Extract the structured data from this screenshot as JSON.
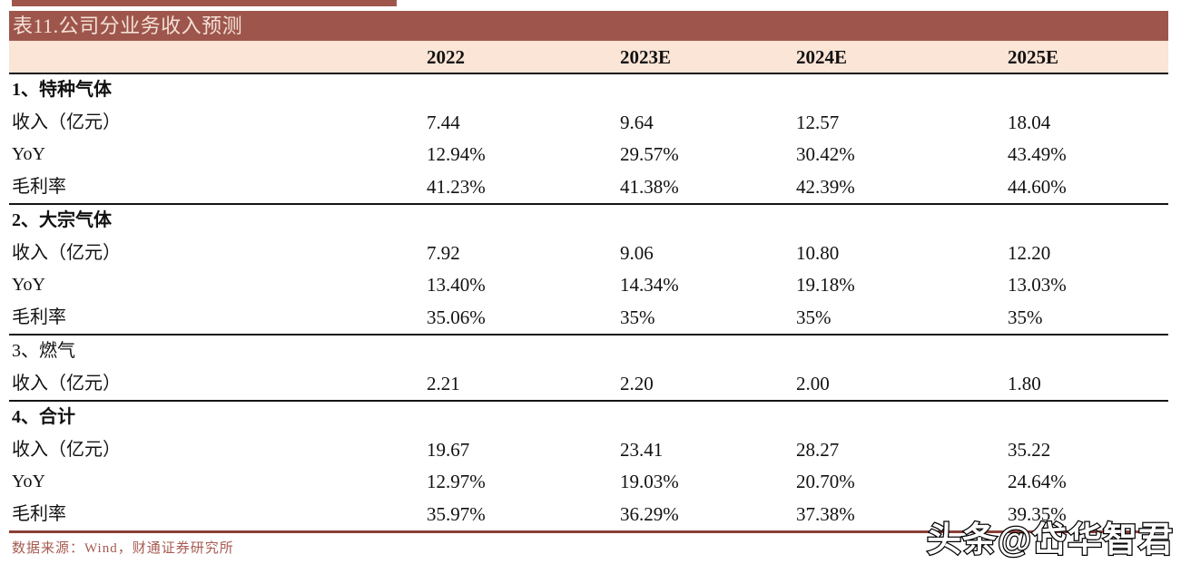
{
  "title": "表11.公司分业务收入预测",
  "columns": [
    "2022",
    "2023E",
    "2024E",
    "2025E"
  ],
  "sections": [
    {
      "name": "1、特种气体",
      "bold": true,
      "rows": [
        {
          "label": "收入（亿元）",
          "values": [
            "7.44",
            "9.64",
            "12.57",
            "18.04"
          ]
        },
        {
          "label": "YoY",
          "values": [
            "12.94%",
            "29.57%",
            "30.42%",
            "43.49%"
          ]
        },
        {
          "label": "毛利率",
          "values": [
            "41.23%",
            "41.38%",
            "42.39%",
            "44.60%"
          ]
        }
      ]
    },
    {
      "name": "2、大宗气体",
      "bold": true,
      "rows": [
        {
          "label": "收入（亿元）",
          "values": [
            "7.92",
            "9.06",
            "10.80",
            "12.20"
          ]
        },
        {
          "label": "YoY",
          "values": [
            "13.40%",
            "14.34%",
            "19.18%",
            "13.03%"
          ]
        },
        {
          "label": "毛利率",
          "values": [
            "35.06%",
            "35%",
            "35%",
            "35%"
          ]
        }
      ]
    },
    {
      "name": "3、燃气",
      "bold": false,
      "rows": [
        {
          "label": "收入（亿元）",
          "values": [
            "2.21",
            "2.20",
            "2.00",
            "1.80"
          ]
        }
      ]
    },
    {
      "name": "4、合计",
      "bold": true,
      "rows": [
        {
          "label": "收入（亿元）",
          "values": [
            "19.67",
            "23.41",
            "28.27",
            "35.22"
          ]
        },
        {
          "label": "YoY",
          "values": [
            "12.97%",
            "19.03%",
            "20.70%",
            "24.64%"
          ]
        },
        {
          "label": "毛利率",
          "values": [
            "35.97%",
            "36.29%",
            "37.38%",
            "39.35%"
          ]
        }
      ]
    }
  ],
  "source": "数据来源：Wind，财通证券研究所",
  "watermark": "头条@岱华智君",
  "colors": {
    "title_bar_bg": "#9e564c",
    "title_text": "#f4e0d6",
    "header_bg": "#fbe5d6",
    "table_border": "#151515",
    "bottom_rule": "#8b4038",
    "source_text": "#a65a50"
  },
  "chart_data": {
    "type": "table",
    "title": "表11.公司分业务收入预测",
    "columns": [
      "2022",
      "2023E",
      "2024E",
      "2025E"
    ],
    "rows": [
      {
        "section": "1、特种气体",
        "metric": "收入（亿元）",
        "values": [
          7.44,
          9.64,
          12.57,
          18.04
        ]
      },
      {
        "section": "1、特种气体",
        "metric": "YoY",
        "values": [
          "12.94%",
          "29.57%",
          "30.42%",
          "43.49%"
        ]
      },
      {
        "section": "1、特种气体",
        "metric": "毛利率",
        "values": [
          "41.23%",
          "41.38%",
          "42.39%",
          "44.60%"
        ]
      },
      {
        "section": "2、大宗气体",
        "metric": "收入（亿元）",
        "values": [
          7.92,
          9.06,
          10.8,
          12.2
        ]
      },
      {
        "section": "2、大宗气体",
        "metric": "YoY",
        "values": [
          "13.40%",
          "14.34%",
          "19.18%",
          "13.03%"
        ]
      },
      {
        "section": "2、大宗气体",
        "metric": "毛利率",
        "values": [
          "35.06%",
          "35%",
          "35%",
          "35%"
        ]
      },
      {
        "section": "3、燃气",
        "metric": "收入（亿元）",
        "values": [
          2.21,
          2.2,
          2.0,
          1.8
        ]
      },
      {
        "section": "4、合计",
        "metric": "收入（亿元）",
        "values": [
          19.67,
          23.41,
          28.27,
          35.22
        ]
      },
      {
        "section": "4、合计",
        "metric": "YoY",
        "values": [
          "12.97%",
          "19.03%",
          "20.70%",
          "24.64%"
        ]
      },
      {
        "section": "4、合计",
        "metric": "毛利率",
        "values": [
          "35.97%",
          "36.29%",
          "37.38%",
          "39.35%"
        ]
      }
    ]
  }
}
